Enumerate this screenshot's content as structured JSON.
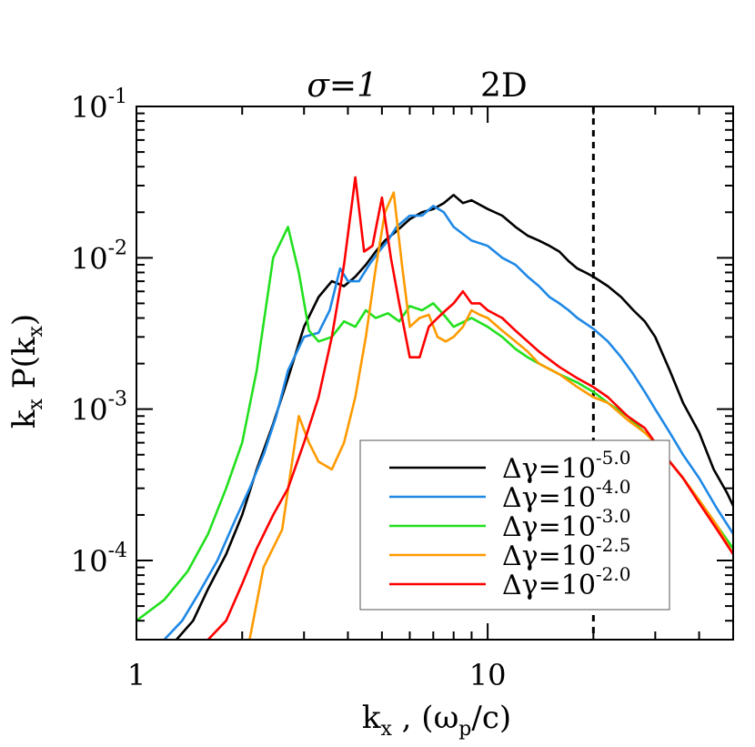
{
  "chart_data": {
    "type": "line",
    "title_sigma": "σ=1",
    "title_dim": "2D",
    "xlabel_main": "k",
    "xlabel_sub": "x",
    "xlabel_rest": " ,  (ω",
    "xlabel_sub2": "p",
    "xlabel_end": "/c)",
    "ylabel_main": "k",
    "ylabel_sub": "x",
    "ylabel_mid": " P(k",
    "ylabel_sub2": "x",
    "ylabel_end": ")",
    "xscale": "log",
    "yscale": "log",
    "xlim": [
      1,
      50
    ],
    "ylim": [
      3e-05,
      0.1
    ],
    "x_ticks": [
      {
        "value": 1,
        "label": "1"
      },
      {
        "value": 10,
        "label": "10"
      }
    ],
    "y_ticks": [
      {
        "value": 0.1,
        "base": "10",
        "exp": "-1"
      },
      {
        "value": 0.01,
        "base": "10",
        "exp": "-2"
      },
      {
        "value": 0.001,
        "base": "10",
        "exp": "-3"
      },
      {
        "value": 0.0001,
        "base": "10",
        "exp": "-4"
      }
    ],
    "vline": {
      "x": 20,
      "style": "dashed"
    },
    "legend_position": "lower-right",
    "series": [
      {
        "name_prefix": "Δγ=10",
        "name_exp": "-5.0",
        "color": "#000000",
        "points": [
          [
            1.3,
            3e-05
          ],
          [
            1.45,
            4e-05
          ],
          [
            1.6,
            6.5e-05
          ],
          [
            1.8,
            0.00011
          ],
          [
            2.0,
            0.0002
          ],
          [
            2.2,
            0.0004
          ],
          [
            2.45,
            0.0008
          ],
          [
            2.7,
            0.0016
          ],
          [
            3.0,
            0.0035
          ],
          [
            3.3,
            0.0055
          ],
          [
            3.6,
            0.007
          ],
          [
            3.9,
            0.0065
          ],
          [
            4.2,
            0.0075
          ],
          [
            4.5,
            0.009
          ],
          [
            4.8,
            0.011
          ],
          [
            5.1,
            0.013
          ],
          [
            5.5,
            0.015
          ],
          [
            6.0,
            0.018
          ],
          [
            6.5,
            0.02
          ],
          [
            7.0,
            0.021
          ],
          [
            7.5,
            0.023
          ],
          [
            8.0,
            0.026
          ],
          [
            8.5,
            0.023
          ],
          [
            9.0,
            0.024
          ],
          [
            10,
            0.021
          ],
          [
            11,
            0.019
          ],
          [
            12,
            0.016
          ],
          [
            13,
            0.014
          ],
          [
            14,
            0.013
          ],
          [
            15,
            0.012
          ],
          [
            16,
            0.011
          ],
          [
            17,
            0.0095
          ],
          [
            18,
            0.0085
          ],
          [
            19,
            0.008
          ],
          [
            20,
            0.0075
          ],
          [
            22,
            0.0065
          ],
          [
            24,
            0.0055
          ],
          [
            26,
            0.0045
          ],
          [
            28,
            0.0038
          ],
          [
            30,
            0.003
          ],
          [
            33,
            0.0018
          ],
          [
            36,
            0.0011
          ],
          [
            40,
            0.0007
          ],
          [
            44,
            0.0004
          ],
          [
            48,
            0.00028
          ],
          [
            50,
            0.00023
          ]
        ]
      },
      {
        "name_prefix": "Δγ=10",
        "name_exp": "-4.0",
        "color": "#1e88e5",
        "points": [
          [
            1.2,
            3e-05
          ],
          [
            1.35,
            4e-05
          ],
          [
            1.5,
            6e-05
          ],
          [
            1.7,
            0.0001
          ],
          [
            1.9,
            0.00018
          ],
          [
            2.1,
            0.0003
          ],
          [
            2.3,
            0.0005
          ],
          [
            2.5,
            0.0009
          ],
          [
            2.7,
            0.0018
          ],
          [
            3.0,
            0.003
          ],
          [
            3.3,
            0.0032
          ],
          [
            3.55,
            0.0045
          ],
          [
            3.8,
            0.0085
          ],
          [
            4.0,
            0.007
          ],
          [
            4.3,
            0.007
          ],
          [
            4.6,
            0.009
          ],
          [
            4.9,
            0.011
          ],
          [
            5.2,
            0.013
          ],
          [
            5.5,
            0.016
          ],
          [
            6.0,
            0.019
          ],
          [
            6.5,
            0.019
          ],
          [
            7.0,
            0.022
          ],
          [
            7.5,
            0.02
          ],
          [
            8.0,
            0.016
          ],
          [
            9.0,
            0.013
          ],
          [
            10,
            0.012
          ],
          [
            11,
            0.01
          ],
          [
            12,
            0.009
          ],
          [
            13,
            0.0075
          ],
          [
            14,
            0.0065
          ],
          [
            15,
            0.0055
          ],
          [
            16,
            0.005
          ],
          [
            17,
            0.0045
          ],
          [
            18,
            0.004
          ],
          [
            20,
            0.0034
          ],
          [
            22,
            0.0028
          ],
          [
            24,
            0.0022
          ],
          [
            26,
            0.0017
          ],
          [
            28,
            0.0013
          ],
          [
            30,
            0.001
          ],
          [
            33,
            0.0007
          ],
          [
            36,
            0.0005
          ],
          [
            40,
            0.00035
          ],
          [
            45,
            0.00022
          ],
          [
            50,
            0.00015
          ]
        ]
      },
      {
        "name_prefix": "Δγ=10",
        "name_exp": "-3.0",
        "color": "#22e01e",
        "points": [
          [
            1.0,
            4e-05
          ],
          [
            1.2,
            5.5e-05
          ],
          [
            1.4,
            8.5e-05
          ],
          [
            1.6,
            0.00015
          ],
          [
            1.8,
            0.0003
          ],
          [
            2.0,
            0.0006
          ],
          [
            2.2,
            0.0018
          ],
          [
            2.45,
            0.01
          ],
          [
            2.7,
            0.016
          ],
          [
            2.9,
            0.008
          ],
          [
            3.1,
            0.0033
          ],
          [
            3.3,
            0.0028
          ],
          [
            3.6,
            0.003
          ],
          [
            3.9,
            0.0038
          ],
          [
            4.2,
            0.0035
          ],
          [
            4.5,
            0.0045
          ],
          [
            4.8,
            0.004
          ],
          [
            5.2,
            0.0043
          ],
          [
            5.6,
            0.0038
          ],
          [
            6.0,
            0.0048
          ],
          [
            6.5,
            0.0045
          ],
          [
            7.0,
            0.005
          ],
          [
            7.5,
            0.0042
          ],
          [
            8.0,
            0.0035
          ],
          [
            9.0,
            0.004
          ],
          [
            10,
            0.0035
          ],
          [
            11,
            0.003
          ],
          [
            12,
            0.0025
          ],
          [
            13,
            0.0022
          ],
          [
            14,
            0.002
          ],
          [
            16,
            0.0017
          ],
          [
            18,
            0.0015
          ],
          [
            20,
            0.0013
          ],
          [
            22,
            0.0011
          ],
          [
            25,
            0.0009
          ],
          [
            28,
            0.0007
          ],
          [
            30,
            0.0006
          ],
          [
            33,
            0.00045
          ],
          [
            36,
            0.00035
          ],
          [
            40,
            0.00025
          ],
          [
            45,
            0.00017
          ],
          [
            50,
            0.00012
          ]
        ]
      },
      {
        "name_prefix": "Δγ=10",
        "name_exp": "-2.5",
        "color": "#ff9a00",
        "points": [
          [
            2.1,
            3e-05
          ],
          [
            2.3,
            9e-05
          ],
          [
            2.6,
            0.00016
          ],
          [
            2.9,
            0.0009
          ],
          [
            3.1,
            0.0006
          ],
          [
            3.3,
            0.00045
          ],
          [
            3.6,
            0.0004
          ],
          [
            3.9,
            0.0006
          ],
          [
            4.2,
            0.0012
          ],
          [
            4.5,
            0.003
          ],
          [
            4.8,
            0.0085
          ],
          [
            5.1,
            0.02
          ],
          [
            5.4,
            0.027
          ],
          [
            5.7,
            0.009
          ],
          [
            6.0,
            0.0035
          ],
          [
            6.4,
            0.004
          ],
          [
            6.8,
            0.0042
          ],
          [
            7.2,
            0.003
          ],
          [
            7.6,
            0.0028
          ],
          [
            8.0,
            0.003
          ],
          [
            8.5,
            0.0035
          ],
          [
            9.0,
            0.0045
          ],
          [
            9.5,
            0.0042
          ],
          [
            10,
            0.004
          ],
          [
            11,
            0.0033
          ],
          [
            12,
            0.0028
          ],
          [
            13,
            0.0024
          ],
          [
            14,
            0.002
          ],
          [
            16,
            0.0017
          ],
          [
            18,
            0.0014
          ],
          [
            20,
            0.0012
          ],
          [
            22,
            0.0011
          ],
          [
            25,
            0.00085
          ],
          [
            28,
            0.0007
          ],
          [
            30,
            0.0006
          ],
          [
            33,
            0.00045
          ],
          [
            36,
            0.00035
          ],
          [
            40,
            0.00025
          ],
          [
            45,
            0.00017
          ],
          [
            50,
            0.00011
          ]
        ]
      },
      {
        "name_prefix": "Δγ=10",
        "name_exp": "-2.0",
        "color": "#ff0000",
        "points": [
          [
            1.6,
            3e-05
          ],
          [
            1.8,
            4e-05
          ],
          [
            2.0,
            7e-05
          ],
          [
            2.2,
            0.00012
          ],
          [
            2.45,
            0.0002
          ],
          [
            2.7,
            0.0003
          ],
          [
            3.0,
            0.0006
          ],
          [
            3.3,
            0.0012
          ],
          [
            3.6,
            0.003
          ],
          [
            3.9,
            0.009
          ],
          [
            4.2,
            0.034
          ],
          [
            4.45,
            0.011
          ],
          [
            4.7,
            0.012
          ],
          [
            5.0,
            0.025
          ],
          [
            5.3,
            0.01
          ],
          [
            5.6,
            0.005
          ],
          [
            6.0,
            0.0022
          ],
          [
            6.4,
            0.0022
          ],
          [
            6.8,
            0.0035
          ],
          [
            7.2,
            0.004
          ],
          [
            7.6,
            0.0045
          ],
          [
            8.0,
            0.005
          ],
          [
            8.5,
            0.006
          ],
          [
            9.0,
            0.005
          ],
          [
            9.5,
            0.005
          ],
          [
            10,
            0.0045
          ],
          [
            11,
            0.004
          ],
          [
            12,
            0.0033
          ],
          [
            13,
            0.0028
          ],
          [
            14,
            0.0024
          ],
          [
            16,
            0.0019
          ],
          [
            18,
            0.0016
          ],
          [
            20,
            0.0014
          ],
          [
            22,
            0.0012
          ],
          [
            25,
            0.0009
          ],
          [
            28,
            0.00075
          ],
          [
            30,
            0.0006
          ],
          [
            33,
            0.00045
          ],
          [
            36,
            0.00035
          ],
          [
            40,
            0.00024
          ],
          [
            45,
            0.00016
          ],
          [
            50,
            0.00011
          ]
        ]
      }
    ]
  }
}
